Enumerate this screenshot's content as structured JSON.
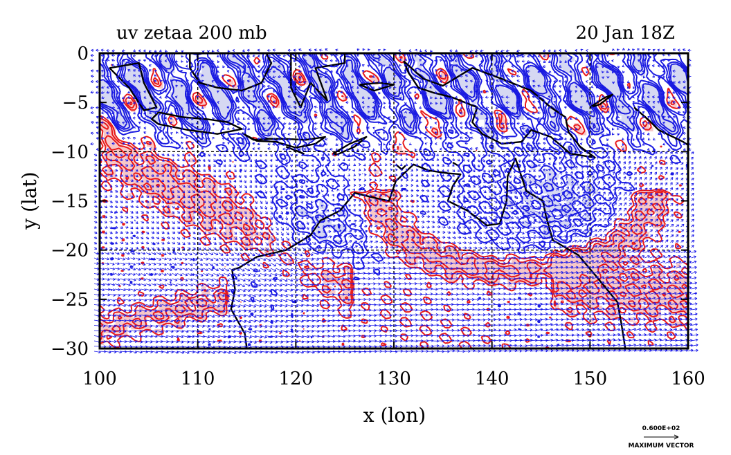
{
  "colors": {
    "positive": "#e81818",
    "positive_fill": "#f7c8c8",
    "negative": "#1a1ae0",
    "negative_fill": "#d6d8f2",
    "vectors": "#1414e8",
    "coast": "#000000",
    "grid": "#000000"
  },
  "chart_data": {
    "type": "contour map with wind vectors",
    "title": "uv zetaa 200 mb",
    "subtitle": "20 Jan 18Z",
    "xlabel": "x (lon)",
    "ylabel": "y (lat)",
    "xlim": [
      100,
      160
    ],
    "ylim": [
      -30,
      0
    ],
    "x_ticks": [
      100,
      110,
      120,
      130,
      140,
      150,
      160
    ],
    "x_tick_labels": [
      "100",
      "110",
      "120",
      "130",
      "140",
      "150",
      "160"
    ],
    "y_ticks": [
      0,
      -5,
      -10,
      -15,
      -20,
      -25,
      -30
    ],
    "y_tick_labels": [
      "0",
      "−5",
      "−10",
      "−15",
      "−20",
      "−25",
      "−30"
    ],
    "grid_lines_x": [
      110,
      120,
      130,
      140,
      150
    ],
    "grid_lines_y": [
      -10,
      -20
    ],
    "grid": "dashed",
    "vector_key": {
      "value_label": "0.600E+02",
      "caption": "MAXIMUM VECTOR"
    },
    "series": [
      {
        "kind": "positive vorticity contours",
        "features": [
          {
            "lon": [
              108,
              125
            ],
            "lat": [
              -12,
              -27
            ],
            "shape": "diagonal band"
          },
          {
            "lon": [
              120,
              155
            ],
            "lat": [
              -18,
              -26
            ],
            "shape": "curved band"
          },
          {
            "lon": [
              100,
              112
            ],
            "lat": [
              -26,
              -30
            ],
            "shape": "streaks"
          },
          {
            "lon": [
              148,
              160
            ],
            "lat": [
              -19,
              -29
            ],
            "shape": "band"
          },
          {
            "lon": [
              120,
              145
            ],
            "lat": [
              -4,
              -8
            ],
            "shape": "streaks"
          }
        ]
      },
      {
        "kind": "negative vorticity contours",
        "features": [
          {
            "lon": [
              100,
              160
            ],
            "lat": [
              0,
              -10
            ],
            "shape": "dense tropical band"
          },
          {
            "lon": [
              115,
              130
            ],
            "lat": [
              -13,
              -24
            ],
            "shape": "cyclonic eddy"
          },
          {
            "lon": [
              135,
              158
            ],
            "lat": [
              -10,
              -21
            ],
            "shape": "large eddy"
          }
        ]
      }
    ]
  }
}
